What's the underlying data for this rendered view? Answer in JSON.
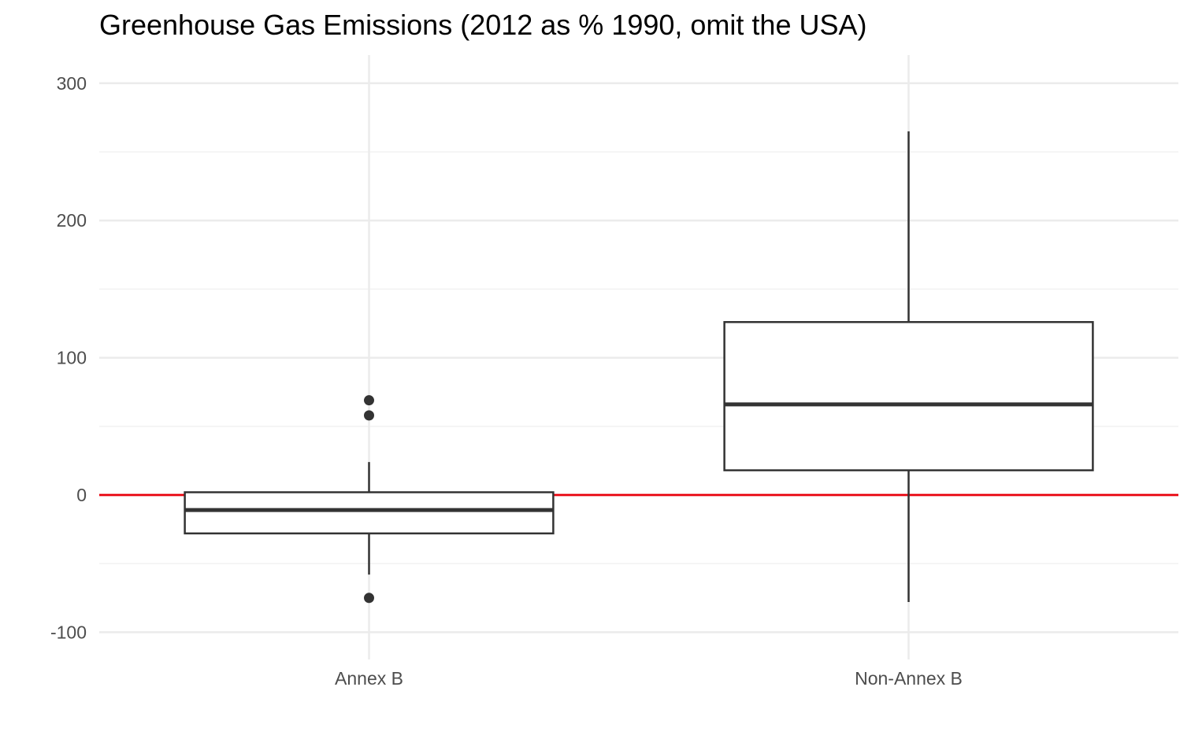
{
  "chart_data": {
    "type": "boxplot",
    "title": "Greenhouse Gas Emissions (2012 as % 1990, omit the USA)",
    "xlabel": "",
    "ylabel": "",
    "ylim": [
      -115,
      320
    ],
    "y_ticks": [
      -100,
      0,
      100,
      200,
      300
    ],
    "y_tick_labels": [
      "-100",
      "0",
      "100",
      "200",
      "300"
    ],
    "categories": [
      "Annex B",
      "Non-Annex B"
    ],
    "boxes": [
      {
        "category": "Annex B",
        "whisker_low": -58,
        "q1": -28,
        "median": -11,
        "q3": 2,
        "whisker_high": 24,
        "outliers": [
          69,
          58,
          -75
        ]
      },
      {
        "category": "Non-Annex B",
        "whisker_low": -78,
        "q1": 18,
        "median": 66,
        "q3": 126,
        "whisker_high": 265,
        "outliers": []
      }
    ],
    "reference_line": {
      "y": 0,
      "color": "#e8000b"
    },
    "grid": true,
    "legend": "none",
    "colors": {
      "box_stroke": "#333333",
      "grid_major": "#ebebeb",
      "grid_minor": "#f2f2f2",
      "tick_text": "#4d4d4d",
      "title_text": "#000000"
    }
  }
}
